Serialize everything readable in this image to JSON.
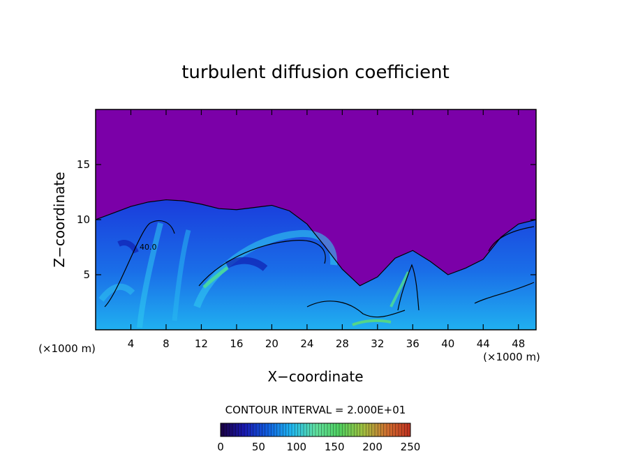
{
  "chart_data": {
    "type": "heatmap",
    "title": "turbulent diffusion coefficient",
    "xlabel": "X−coordinate",
    "ylabel": "Z−coordinate",
    "x_unit_label": "(×1000 m)",
    "y_unit_label": "(×1000 m)",
    "xlim": [
      0,
      50
    ],
    "ylim": [
      0,
      20
    ],
    "x_ticks": [
      "4",
      "8",
      "12",
      "16",
      "20",
      "24",
      "28",
      "32",
      "36",
      "40",
      "44",
      "48"
    ],
    "y_ticks": [
      "5",
      "10",
      "15"
    ],
    "contour_interval_label": "CONTOUR INTERVAL = 2.000E+01",
    "contour_interval": 20,
    "contour_label": "40.0",
    "colorbar": {
      "range": [
        0,
        250
      ],
      "ticks": [
        "0",
        "50",
        "100",
        "150",
        "200",
        "250"
      ],
      "colors": [
        "#1a0040",
        "#1a1ab0",
        "#1060e0",
        "#20b8f0",
        "#60e0a0",
        "#50d060",
        "#a0c040",
        "#d07030",
        "#c03020"
      ]
    },
    "background_color": "#7b00a8",
    "turbulent_layer_top": [
      [
        0,
        10.0
      ],
      [
        2,
        10.6
      ],
      [
        4,
        11.2
      ],
      [
        6,
        11.6
      ],
      [
        8,
        11.8
      ],
      [
        10,
        11.7
      ],
      [
        12,
        11.4
      ],
      [
        14,
        11.0
      ],
      [
        16,
        10.9
      ],
      [
        18,
        11.1
      ],
      [
        20,
        11.3
      ],
      [
        22,
        10.8
      ],
      [
        24,
        9.6
      ],
      [
        26,
        7.6
      ],
      [
        28,
        5.5
      ],
      [
        30,
        4.0
      ],
      [
        32,
        4.8
      ],
      [
        34,
        6.5
      ],
      [
        36,
        7.2
      ],
      [
        38,
        6.2
      ],
      [
        40,
        5.0
      ],
      [
        42,
        5.6
      ],
      [
        44,
        6.4
      ],
      [
        46,
        8.4
      ],
      [
        48,
        9.6
      ],
      [
        50,
        10.0
      ]
    ]
  }
}
